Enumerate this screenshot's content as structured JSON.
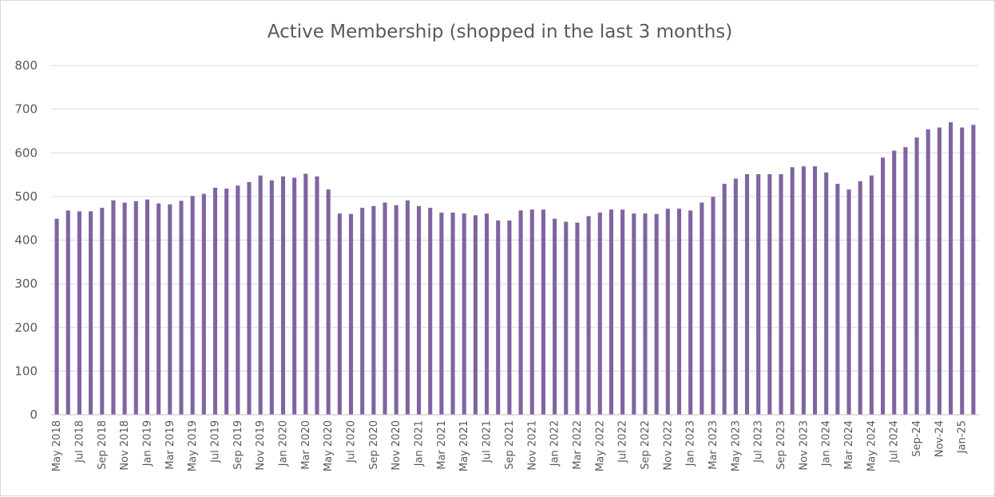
{
  "chart_data": {
    "type": "bar",
    "title": "Active Membership (shopped in the last 3 months)",
    "xlabel": "",
    "ylabel": "",
    "ylim": [
      0,
      800
    ],
    "yticks": [
      0,
      100,
      200,
      300,
      400,
      500,
      600,
      700,
      800
    ],
    "grid": true,
    "legend": "none",
    "bar_color": "#8064a2",
    "categories": [
      "May 2018",
      "Jun 2018",
      "Jul 2018",
      "Aug 2018",
      "Sep 2018",
      "Oct 2018",
      "Nov 2018",
      "Dec 2018",
      "Jan 2019",
      "Feb 2019",
      "Mar 2019",
      "Apr 2019",
      "May 2019",
      "Jun 2019",
      "Jul 2019",
      "Aug 2019",
      "Sep 2019",
      "Oct 2019",
      "Nov 2019",
      "Dec 2019",
      "Jan 2020",
      "Feb 2020",
      "Mar 2020",
      "Apr 2020",
      "May 2020",
      "Jun 2020",
      "Jul 2020",
      "Aug 2020",
      "Sep 2020",
      "Oct 2020",
      "Nov 2020",
      "Dec 2020",
      "Jan 2021",
      "Feb 2021",
      "Mar 2021",
      "Apr 2021",
      "May 2021",
      "Jun 2021",
      "Jul 2021",
      "Aug 2021",
      "Sep 2021",
      "Oct 2021",
      "Nov 2021",
      "Dec 2021",
      "Jan 2022",
      "Feb 2022",
      "Mar 2022",
      "Apr 2022",
      "May 2022",
      "Jun 2022",
      "Jul 2022",
      "Aug 2022",
      "Sep 2022",
      "Oct 2022",
      "Nov 2022",
      "Dec 2022",
      "Jan 2023",
      "Feb 2023",
      "Mar 2023",
      "Apr 2023",
      "May 2023",
      "Jun 2023",
      "Jul 2023",
      "Aug 2023",
      "Sep 2023",
      "Oct 2023",
      "Nov 2023",
      "Dec 2023",
      "Jan 2024",
      "Feb 2024",
      "Mar 2024",
      "Apr 2024",
      "May 2024",
      "Jun 2024",
      "Jul 2024",
      "Aug 2024",
      "Sep-24",
      "Oct-24",
      "Nov-24",
      "Dec-24",
      "Jan-25",
      "Feb-25"
    ],
    "values": [
      449,
      468,
      466,
      466,
      474,
      491,
      486,
      489,
      493,
      484,
      482,
      490,
      501,
      506,
      520,
      518,
      525,
      533,
      548,
      537,
      546,
      543,
      552,
      546,
      516,
      461,
      460,
      474,
      478,
      486,
      480,
      491,
      478,
      474,
      463,
      463,
      461,
      457,
      461,
      445,
      445,
      468,
      470,
      470,
      449,
      442,
      440,
      455,
      463,
      470,
      470,
      461,
      461,
      460,
      472,
      472,
      468,
      486,
      499,
      529,
      541,
      551,
      551,
      551,
      551,
      567,
      569,
      569,
      555,
      529,
      516,
      535,
      548,
      589,
      605,
      613,
      635,
      654,
      658,
      670,
      658,
      664
    ],
    "label_every": 2
  }
}
